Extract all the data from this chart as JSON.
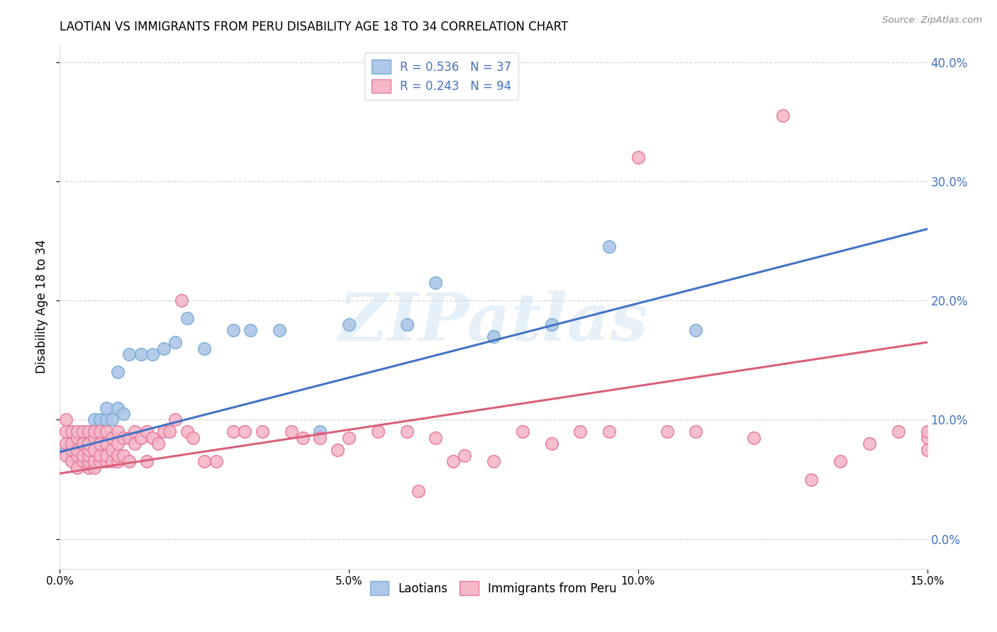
{
  "title": "LAOTIAN VS IMMIGRANTS FROM PERU DISABILITY AGE 18 TO 34 CORRELATION CHART",
  "source": "Source: ZipAtlas.com",
  "ylabel": "Disability Age 18 to 34",
  "x_min": 0.0,
  "x_max": 0.15,
  "y_min": -0.025,
  "y_max": 0.415,
  "yticks": [
    0.0,
    0.1,
    0.2,
    0.3,
    0.4
  ],
  "xticks": [
    0.0,
    0.05,
    0.1,
    0.15
  ],
  "blue_R": 0.536,
  "blue_N": 37,
  "pink_R": 0.243,
  "pink_N": 94,
  "blue_color": "#aec6e8",
  "blue_edge": "#7bafd4",
  "blue_line_color": "#4472c4",
  "pink_color": "#f4b8c8",
  "pink_edge": "#e87aa0",
  "pink_line_color": "#d9607a",
  "background_color": "#ffffff",
  "grid_color": "#cccccc",
  "watermark": "ZIPatlas",
  "legend_label_blue": "Laotians",
  "legend_label_pink": "Immigrants from Peru",
  "blue_scatter_x": [
    0.001,
    0.002,
    0.002,
    0.003,
    0.003,
    0.004,
    0.004,
    0.005,
    0.005,
    0.006,
    0.006,
    0.007,
    0.007,
    0.008,
    0.008,
    0.009,
    0.01,
    0.01,
    0.011,
    0.012,
    0.014,
    0.016,
    0.018,
    0.02,
    0.022,
    0.025,
    0.03,
    0.033,
    0.038,
    0.045,
    0.05,
    0.06,
    0.065,
    0.075,
    0.085,
    0.095,
    0.11
  ],
  "blue_scatter_y": [
    0.075,
    0.07,
    0.08,
    0.075,
    0.085,
    0.08,
    0.09,
    0.08,
    0.09,
    0.085,
    0.1,
    0.095,
    0.1,
    0.1,
    0.11,
    0.1,
    0.11,
    0.14,
    0.105,
    0.155,
    0.155,
    0.155,
    0.16,
    0.165,
    0.185,
    0.16,
    0.175,
    0.175,
    0.175,
    0.09,
    0.18,
    0.18,
    0.215,
    0.17,
    0.18,
    0.245,
    0.175
  ],
  "pink_scatter_x": [
    0.001,
    0.001,
    0.001,
    0.001,
    0.002,
    0.002,
    0.002,
    0.002,
    0.003,
    0.003,
    0.003,
    0.003,
    0.003,
    0.004,
    0.004,
    0.004,
    0.004,
    0.005,
    0.005,
    0.005,
    0.005,
    0.005,
    0.005,
    0.006,
    0.006,
    0.006,
    0.006,
    0.006,
    0.007,
    0.007,
    0.007,
    0.007,
    0.008,
    0.008,
    0.008,
    0.008,
    0.009,
    0.009,
    0.009,
    0.01,
    0.01,
    0.01,
    0.01,
    0.011,
    0.011,
    0.012,
    0.012,
    0.013,
    0.013,
    0.014,
    0.015,
    0.015,
    0.016,
    0.017,
    0.018,
    0.019,
    0.02,
    0.021,
    0.022,
    0.023,
    0.025,
    0.027,
    0.03,
    0.032,
    0.035,
    0.04,
    0.042,
    0.045,
    0.048,
    0.05,
    0.055,
    0.06,
    0.062,
    0.065,
    0.068,
    0.07,
    0.075,
    0.08,
    0.085,
    0.09,
    0.095,
    0.1,
    0.105,
    0.11,
    0.12,
    0.125,
    0.13,
    0.135,
    0.14,
    0.145,
    0.15,
    0.15,
    0.15,
    0.152
  ],
  "pink_scatter_y": [
    0.07,
    0.08,
    0.09,
    0.1,
    0.065,
    0.075,
    0.08,
    0.09,
    0.06,
    0.07,
    0.075,
    0.085,
    0.09,
    0.065,
    0.07,
    0.08,
    0.09,
    0.06,
    0.065,
    0.07,
    0.075,
    0.08,
    0.09,
    0.06,
    0.065,
    0.075,
    0.085,
    0.09,
    0.065,
    0.07,
    0.08,
    0.09,
    0.065,
    0.07,
    0.08,
    0.09,
    0.065,
    0.075,
    0.085,
    0.065,
    0.07,
    0.08,
    0.09,
    0.07,
    0.085,
    0.065,
    0.085,
    0.08,
    0.09,
    0.085,
    0.065,
    0.09,
    0.085,
    0.08,
    0.09,
    0.09,
    0.1,
    0.2,
    0.09,
    0.085,
    0.065,
    0.065,
    0.09,
    0.09,
    0.09,
    0.09,
    0.085,
    0.085,
    0.075,
    0.085,
    0.09,
    0.09,
    0.04,
    0.085,
    0.065,
    0.07,
    0.065,
    0.09,
    0.08,
    0.09,
    0.09,
    0.32,
    0.09,
    0.09,
    0.085,
    0.355,
    0.05,
    0.065,
    0.08,
    0.09,
    0.075,
    0.085,
    0.09,
    0.09
  ],
  "blue_line_x0": 0.0,
  "blue_line_x1": 0.15,
  "blue_line_y0": 0.073,
  "blue_line_y1": 0.26,
  "pink_line_x0": 0.0,
  "pink_line_x1": 0.15,
  "pink_line_y0": 0.055,
  "pink_line_y1": 0.165
}
